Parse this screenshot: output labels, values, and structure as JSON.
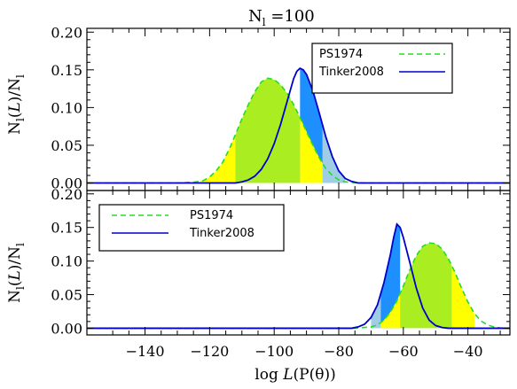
{
  "chart_data": {
    "type": "area",
    "title": "N_l = 100",
    "title_main": "N",
    "title_sub": "l",
    "title_rest": " =100",
    "xlabel": "log L(P(θ))",
    "xlabel_prefix": "log ",
    "xlabel_italic": "L",
    "xlabel_rest": "(P(θ))",
    "ylabel": "N_l(L)/N_l",
    "xlim": [
      -158,
      -27
    ],
    "xticks": [
      -140,
      -120,
      -100,
      -80,
      -60,
      -40
    ],
    "colors": {
      "ps1974_line": "#22dd22",
      "tinker_line": "#0000cc",
      "green_fill": "#aaee22",
      "yellow_fill": "#ffff00",
      "blue_fill": "#1e8fff",
      "lightblue_fill": "#9fcde6"
    },
    "panels": [
      {
        "ylim": [
          -0.01,
          0.205
        ],
        "yticks": [
          "0.00",
          "0.05",
          "0.10",
          "0.15",
          "0.20"
        ],
        "ytick_values": [
          0.0,
          0.05,
          0.1,
          0.15,
          0.2
        ],
        "legend_position": "top-right",
        "series": [
          {
            "name": "PS1974",
            "style": "dashed",
            "x": [
              -158,
              -130,
              -125,
              -122,
              -120,
              -118,
              -116,
              -114,
              -112,
              -110,
              -108,
              -106,
              -104,
              -102,
              -100,
              -98,
              -96,
              -94,
              -92,
              -90,
              -88,
              -86,
              -84,
              -82,
              -80,
              -78,
              -75,
              -70,
              -27
            ],
            "y": [
              0.0,
              0.0,
              0.001,
              0.003,
              0.008,
              0.016,
              0.027,
              0.044,
              0.064,
              0.085,
              0.104,
              0.121,
              0.134,
              0.139,
              0.137,
              0.13,
              0.119,
              0.104,
              0.087,
              0.068,
              0.05,
              0.033,
              0.019,
              0.01,
              0.004,
              0.0015,
              0.0003,
              0.0,
              0.0
            ]
          },
          {
            "name": "Tinker2008",
            "style": "solid",
            "x": [
              -158,
              -112,
              -110,
              -108,
              -106,
              -104,
              -102,
              -100,
              -98,
              -96,
              -94,
              -93,
              -92,
              -91,
              -90,
              -88,
              -86,
              -84,
              -82,
              -80,
              -78,
              -76,
              -74,
              -27
            ],
            "y": [
              0.0,
              0.0,
              0.0015,
              0.004,
              0.009,
              0.018,
              0.032,
              0.052,
              0.078,
              0.108,
              0.138,
              0.148,
              0.152,
              0.15,
              0.144,
              0.122,
              0.092,
              0.061,
              0.035,
              0.016,
              0.006,
              0.002,
              0.0,
              0.0
            ]
          }
        ],
        "bands": [
          {
            "from": -123,
            "to": -112,
            "color": "yellow",
            "series": "PS1974"
          },
          {
            "from": -112,
            "to": -92,
            "color": "green",
            "series": "PS1974"
          },
          {
            "from": -92,
            "to": -85,
            "color": "blue",
            "series": "Tinker2008"
          },
          {
            "from": -85,
            "to": -78,
            "color": "lightblue",
            "series": "Tinker2008"
          }
        ],
        "overlays": [
          {
            "from": -92,
            "to": -85,
            "color": "green",
            "series": "PS1974"
          },
          {
            "from": -92,
            "to": -85,
            "color": "yellow",
            "series": "PS1974",
            "min_of": true
          }
        ]
      },
      {
        "ylim": [
          -0.01,
          0.205
        ],
        "yticks": [
          "0.00",
          "0.05",
          "0.10",
          "0.15",
          "0.20"
        ],
        "ytick_values": [
          0.0,
          0.05,
          0.1,
          0.15,
          0.2
        ],
        "legend_position": "top-left",
        "series": [
          {
            "name": "PS1974",
            "style": "dashed",
            "x": [
              -158,
              -75,
              -70,
              -68,
              -66,
              -64,
              -62,
              -60,
              -58,
              -56,
              -54,
              -52,
              -50,
              -48,
              -46,
              -44,
              -42,
              -40,
              -38,
              -36,
              -34,
              -32,
              -30,
              -27
            ],
            "y": [
              0.0,
              0.0,
              0.002,
              0.005,
              0.012,
              0.024,
              0.041,
              0.063,
              0.087,
              0.108,
              0.122,
              0.127,
              0.126,
              0.118,
              0.103,
              0.083,
              0.06,
              0.039,
              0.022,
              0.011,
              0.005,
              0.002,
              0.0005,
              0.0
            ]
          },
          {
            "name": "Tinker2008",
            "style": "solid",
            "x": [
              -158,
              -76,
              -74,
              -72,
              -70,
              -68,
              -66,
              -64,
              -63,
              -62,
              -61,
              -60,
              -58,
              -56,
              -54,
              -52,
              -50,
              -48,
              -46,
              -27
            ],
            "y": [
              0.0,
              0.0,
              0.002,
              0.006,
              0.016,
              0.035,
              0.068,
              0.11,
              0.135,
              0.155,
              0.15,
              0.135,
              0.098,
              0.06,
              0.03,
              0.012,
              0.004,
              0.001,
              0.0,
              0.0
            ]
          }
        ],
        "bands": [
          {
            "from": -70,
            "to": -67,
            "color": "lightblue",
            "series": "Tinker2008"
          },
          {
            "from": -67,
            "to": -61,
            "color": "blue",
            "series": "Tinker2008"
          },
          {
            "from": -61,
            "to": -45,
            "color": "green",
            "series": "PS1974"
          },
          {
            "from": -45,
            "to": -38,
            "color": "yellow",
            "series": "PS1974"
          }
        ],
        "overlays": [
          {
            "from": -67,
            "to": -61,
            "color": "yellow",
            "series": "PS1974",
            "min_of": true
          }
        ]
      }
    ]
  }
}
